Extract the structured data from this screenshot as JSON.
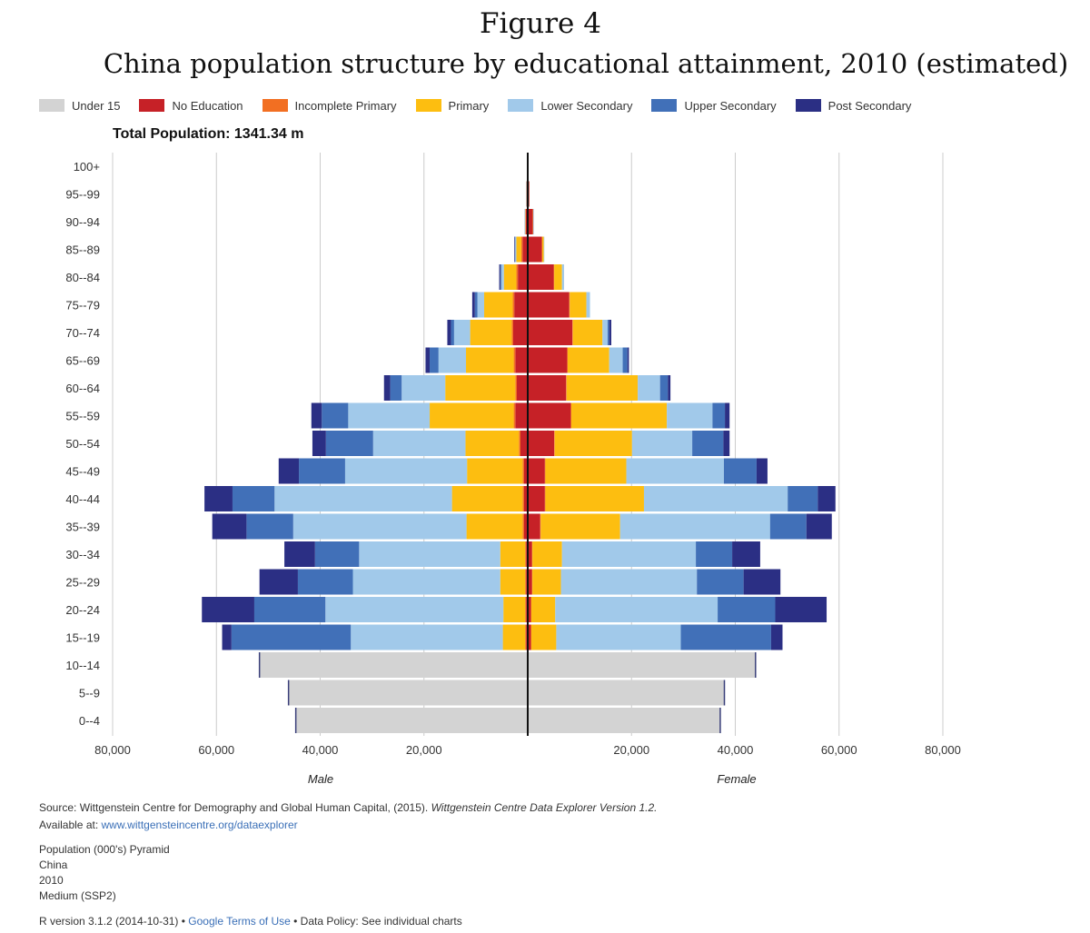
{
  "figure": {
    "number": "Figure 4",
    "title": "China population structure by educational attainment, 2010 (estimated)"
  },
  "total_population": "Total Population: 1341.34 m",
  "legend": [
    {
      "label": "Under 15",
      "color": "#d3d3d3"
    },
    {
      "label": "No Education",
      "color": "#c62127"
    },
    {
      "label": "Incomplete Primary",
      "color": "#f26f22"
    },
    {
      "label": "Primary",
      "color": "#fdbe10"
    },
    {
      "label": "Lower Secondary",
      "color": "#a1c9ea"
    },
    {
      "label": "Upper Secondary",
      "color": "#4170b8"
    },
    {
      "label": "Post Secondary",
      "color": "#2b2f84"
    }
  ],
  "chart_data": {
    "type": "bar",
    "orientation": "horizontal-pyramid",
    "xlim": [
      -80000,
      80000
    ],
    "x_ticks": [
      -80000,
      -60000,
      -40000,
      -20000,
      20000,
      40000,
      60000,
      80000
    ],
    "x_tick_labels": [
      "80,000",
      "60,000",
      "40,000",
      "20,000",
      "20,000",
      "40,000",
      "60,000",
      "80,000"
    ],
    "male_label": "Male",
    "female_label": "Female",
    "grid": true,
    "categories": [
      "100+",
      "95--99",
      "90--94",
      "85--89",
      "80--84",
      "75--79",
      "70--74",
      "65--69",
      "60--64",
      "55--59",
      "50--54",
      "45--49",
      "40--44",
      "35--39",
      "30--34",
      "25--29",
      "20--24",
      "15--19",
      "10--14",
      "5--9",
      "0--4"
    ],
    "series_names": [
      "Under 15",
      "No Education",
      "Incomplete Primary",
      "Primary",
      "Lower Secondary",
      "Upper Secondary",
      "Post Secondary"
    ],
    "male": [
      [
        0,
        40,
        0,
        0,
        0,
        0,
        0
      ],
      [
        0,
        220,
        0,
        30,
        20,
        10,
        20
      ],
      [
        0,
        400,
        20,
        80,
        40,
        20,
        20
      ],
      [
        0,
        1000,
        250,
        950,
        200,
        100,
        100
      ],
      [
        0,
        1900,
        300,
        2400,
        500,
        200,
        200
      ],
      [
        0,
        2600,
        300,
        5500,
        1300,
        500,
        500
      ],
      [
        0,
        2800,
        300,
        8000,
        3100,
        600,
        700
      ],
      [
        0,
        2400,
        300,
        9200,
        5300,
        1700,
        800
      ],
      [
        0,
        2100,
        300,
        13500,
        8400,
        2200,
        1200
      ],
      [
        0,
        2400,
        300,
        16200,
        15700,
        5100,
        2000
      ],
      [
        0,
        1400,
        300,
        10300,
        17800,
        9100,
        2600
      ],
      [
        0,
        700,
        300,
        10700,
        23500,
        8900,
        3900
      ],
      [
        0,
        700,
        300,
        13600,
        34200,
        8100,
        5400
      ],
      [
        0,
        700,
        300,
        10800,
        33400,
        9000,
        6600
      ],
      [
        0,
        300,
        200,
        4800,
        27200,
        8500,
        5900
      ],
      [
        0,
        300,
        200,
        4800,
        28400,
        10600,
        7400
      ],
      [
        0,
        300,
        200,
        4200,
        34300,
        13700,
        10100
      ],
      [
        0,
        300,
        200,
        4300,
        29300,
        23000,
        1800
      ],
      [
        51700,
        0,
        0,
        0,
        0,
        0,
        0
      ],
      [
        46100,
        0,
        0,
        0,
        0,
        0,
        0
      ],
      [
        44700,
        0,
        0,
        0,
        0,
        0,
        0
      ]
    ],
    "female": [
      [
        0,
        60,
        0,
        0,
        0,
        0,
        0
      ],
      [
        0,
        300,
        0,
        20,
        20,
        0,
        0
      ],
      [
        0,
        1000,
        0,
        50,
        40,
        20,
        20
      ],
      [
        0,
        2700,
        100,
        300,
        100,
        0,
        0
      ],
      [
        0,
        5000,
        100,
        1500,
        400,
        0,
        0
      ],
      [
        0,
        8000,
        100,
        3200,
        700,
        0,
        0
      ],
      [
        0,
        8600,
        100,
        5700,
        1000,
        300,
        400
      ],
      [
        0,
        7600,
        100,
        8000,
        2600,
        900,
        300
      ],
      [
        0,
        7400,
        100,
        13700,
        4300,
        1500,
        500
      ],
      [
        0,
        8300,
        100,
        18400,
        8800,
        2400,
        900
      ],
      [
        0,
        5100,
        100,
        14900,
        11600,
        6000,
        1200
      ],
      [
        0,
        3300,
        100,
        15600,
        18800,
        6300,
        2100
      ],
      [
        0,
        3300,
        100,
        19000,
        27700,
        5800,
        3400
      ],
      [
        0,
        2400,
        100,
        15300,
        28900,
        7000,
        4900
      ],
      [
        0,
        800,
        100,
        5700,
        25800,
        7000,
        5400
      ],
      [
        0,
        800,
        100,
        5500,
        26200,
        9000,
        7100
      ],
      [
        0,
        600,
        100,
        4600,
        31300,
        11100,
        9900
      ],
      [
        0,
        600,
        100,
        4800,
        24000,
        17400,
        2200
      ],
      [
        43900,
        0,
        0,
        0,
        0,
        0,
        0
      ],
      [
        37900,
        0,
        0,
        0,
        0,
        0,
        0
      ],
      [
        37100,
        0,
        0,
        0,
        0,
        0,
        0
      ]
    ]
  },
  "footer": {
    "source_prefix": "Source: Wittgenstein Centre for Demography and Global Human Capital, (2015). ",
    "source_italic": "Wittgenstein Centre Data Explorer Version 1.2.",
    "available_prefix": "Available at: ",
    "available_link": "www.wittgensteincentre.org/dataexplorer",
    "meta_lines": [
      "Population (000's) Pyramid",
      "China",
      "2010",
      "Medium (SSP2)"
    ],
    "r_version": "R version 3.1.2 (2014-10-31) • ",
    "terms_link": "Google Terms of Use",
    "data_policy": " • Data Policy: See individual charts"
  }
}
